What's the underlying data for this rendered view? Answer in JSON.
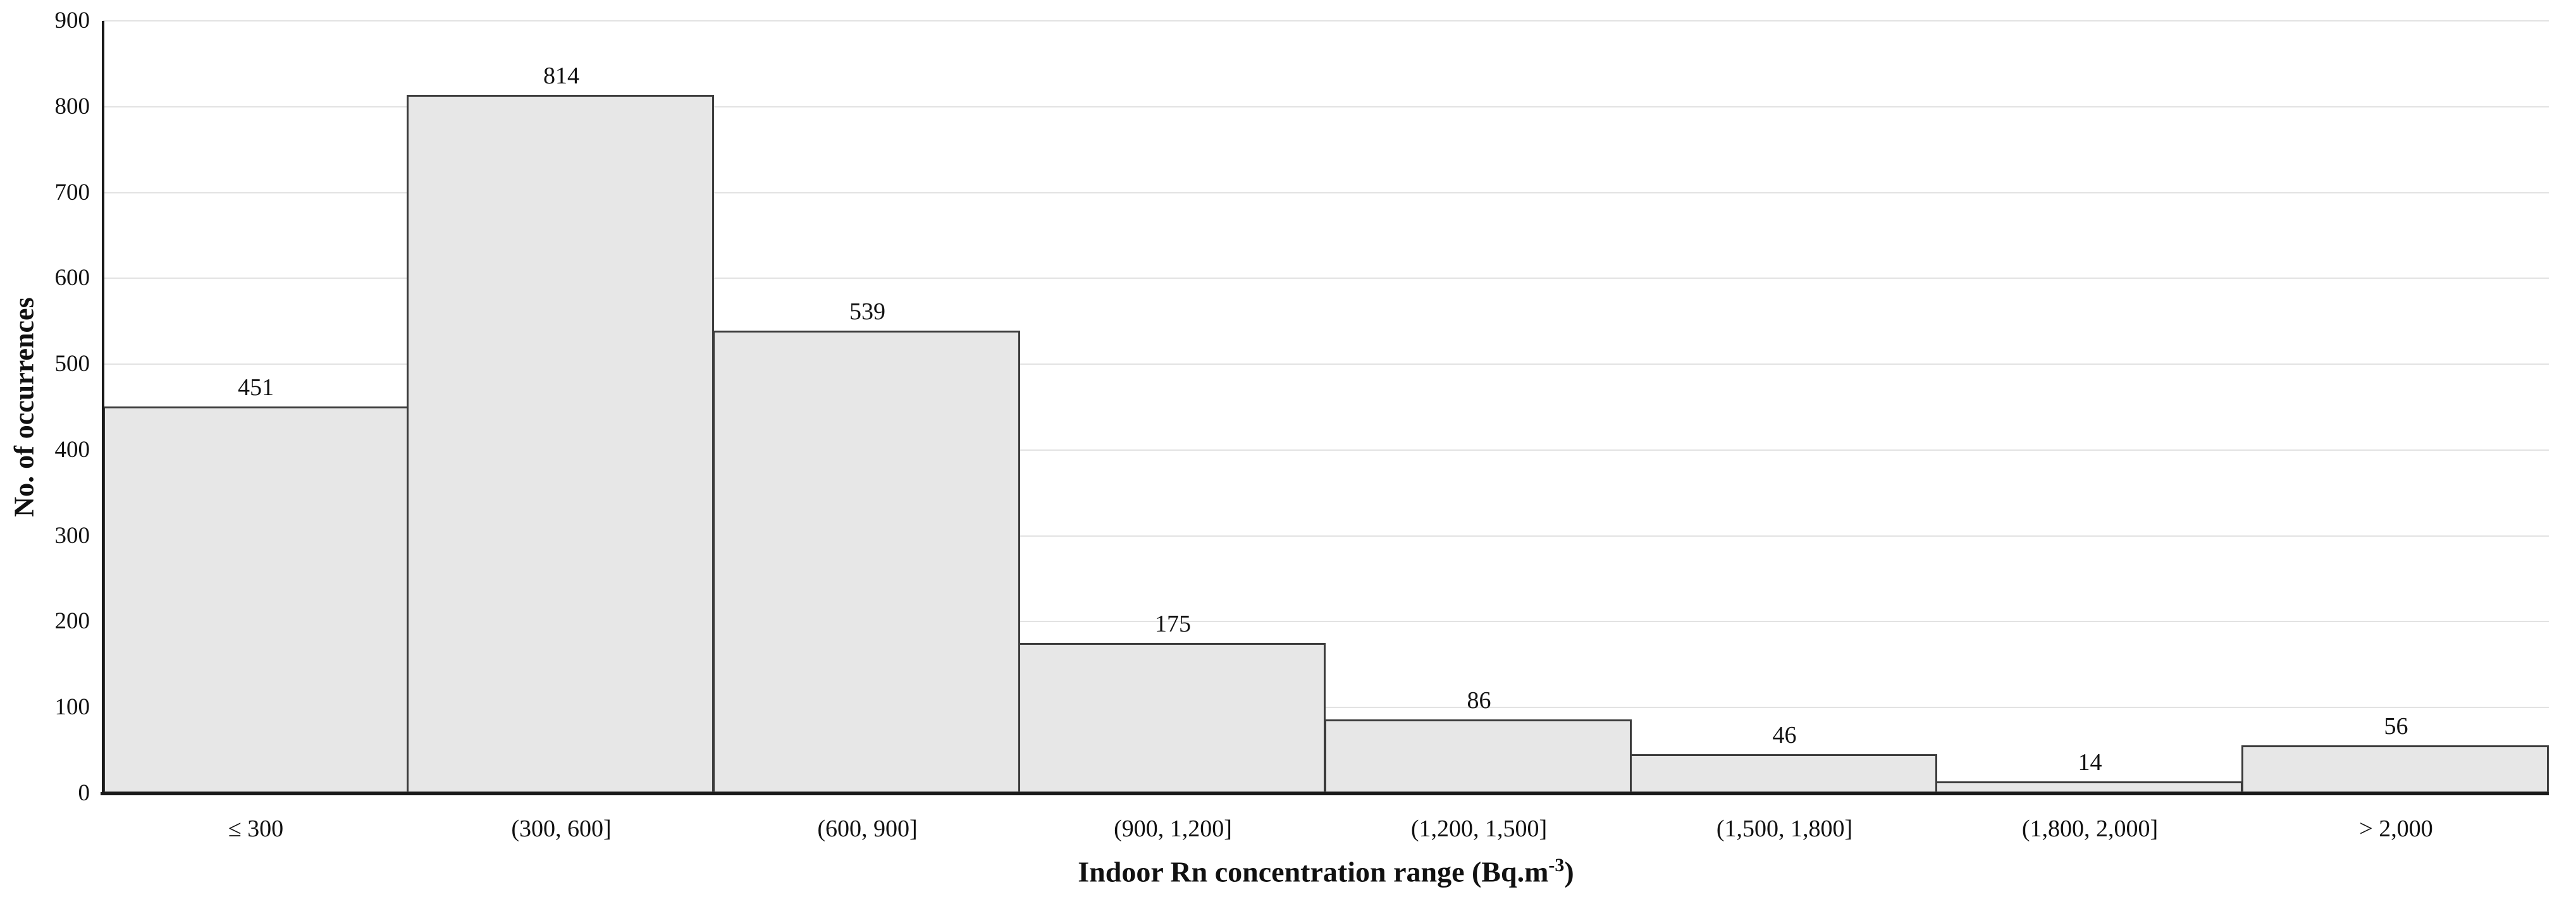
{
  "chart_data": {
    "type": "bar",
    "title": "",
    "categories": [
      "≤ 300",
      "(300, 600]",
      "(600, 900]",
      "(900, 1,200]",
      "(1,200, 1,500]",
      "(1,500, 1,800]",
      "(1,800, 2,000]",
      "> 2,000"
    ],
    "values": [
      451,
      814,
      539,
      175,
      86,
      46,
      14,
      56
    ],
    "value_labels": [
      "451",
      "814",
      "539",
      "175",
      "86",
      "46",
      "14",
      "56"
    ],
    "xlabel": "Indoor Rn concentration range (Bq.m-3)",
    "xlabel_parts": {
      "main": "Indoor Rn concentration range (Bq.m",
      "sup": "-3",
      "end": ")"
    },
    "ylabel": "No. of occurrences",
    "ylim": [
      0,
      900
    ],
    "yticks": [
      0,
      100,
      200,
      300,
      400,
      500,
      600,
      700,
      800,
      900
    ],
    "grid": "horizontal-major-on",
    "legend": "none",
    "colors": {
      "bar_fill": "#e7e7e7",
      "bar_border": "#3c3c3c",
      "gridline": "#e2e2e2",
      "axis": "#1a1a1a",
      "text": "#111111",
      "background": "#ffffff"
    }
  }
}
